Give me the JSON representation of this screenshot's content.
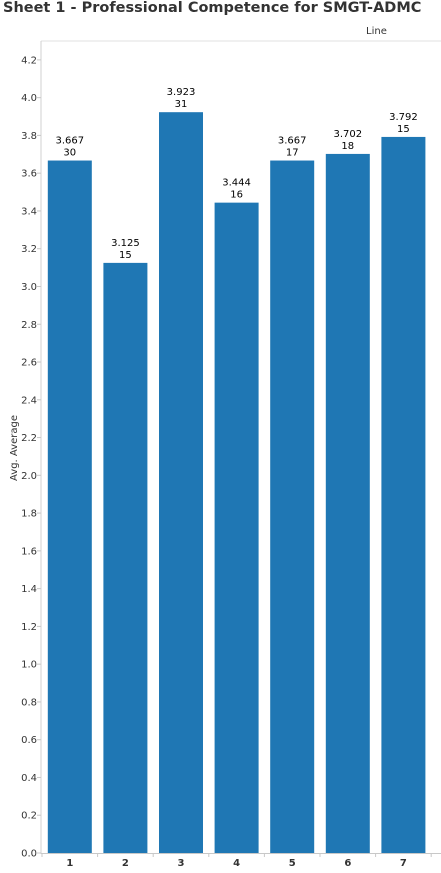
{
  "sheet": {
    "title": "Sheet 1 - Professional Competence for SMGT-ADMC",
    "column_header": "Line"
  },
  "chart_data": {
    "type": "bar",
    "categories": [
      "1",
      "2",
      "3",
      "4",
      "5",
      "6",
      "7"
    ],
    "values": [
      3.667,
      3.125,
      3.923,
      3.444,
      3.667,
      3.702,
      3.792
    ],
    "counts": [
      30,
      15,
      31,
      16,
      17,
      18,
      15
    ],
    "value_labels": [
      "3.667",
      "3.125",
      "3.923",
      "3.444",
      "3.667",
      "3.702",
      "3.792"
    ],
    "ylabel": "Avg. Average",
    "xlabel": "Line",
    "ylim": [
      0,
      4.3
    ],
    "yticks": [
      0.0,
      0.2,
      0.4,
      0.6,
      0.8,
      1.0,
      1.2,
      1.4,
      1.6,
      1.8,
      2.0,
      2.2,
      2.4,
      2.6,
      2.8,
      3.0,
      3.2,
      3.4,
      3.6,
      3.8,
      4.0,
      4.2
    ],
    "ytick_labels": [
      "0.0",
      "0.2",
      "0.4",
      "0.6",
      "0.8",
      "1.0",
      "1.2",
      "1.4",
      "1.6",
      "1.8",
      "2.0",
      "2.2",
      "2.4",
      "2.6",
      "2.8",
      "3.0",
      "3.2",
      "3.4",
      "3.6",
      "3.8",
      "4.0",
      "4.2"
    ],
    "bar_color": "#1f77b4",
    "grid": false,
    "legend": "none"
  }
}
